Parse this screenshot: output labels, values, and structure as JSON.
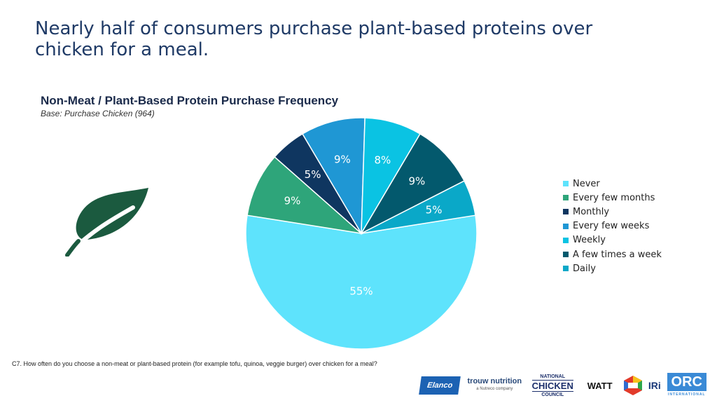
{
  "headline": "Nearly half of consumers purchase plant-based proteins over chicken for a meal.",
  "chart_data": {
    "type": "pie",
    "title": "Non-Meat / Plant-Based Protein Purchase Frequency",
    "subtitle": "Base: Purchase Chicken (964)",
    "slices": [
      {
        "label": "Never",
        "value": 55,
        "display": "55%",
        "color": "#5ee3fc"
      },
      {
        "label": "Every few months",
        "value": 9,
        "display": "9%",
        "color": "#2ea57a"
      },
      {
        "label": "Monthly",
        "value": 5,
        "display": "5%",
        "color": "#0f3660"
      },
      {
        "label": "Every few weeks",
        "value": 9,
        "display": "9%",
        "color": "#1f97d4"
      },
      {
        "label": "Weekly",
        "value": 8,
        "display": "8%",
        "color": "#0ac3e3"
      },
      {
        "label": "A few times a week",
        "value": 9,
        "display": "9%",
        "color": "#03596d"
      },
      {
        "label": "Daily",
        "value": 5,
        "display": "5%",
        "color": "#0aa8c8"
      }
    ],
    "legend_position": "right"
  },
  "icons": {
    "leaf": "leaf-icon"
  },
  "footnote": "C7. How often do you choose a non-meat or plant-based protein (for example tofu, quinoa, veggie burger) over chicken for a meal?",
  "logos": {
    "elanco": "Elanco",
    "trouw": "trouw nutrition",
    "trouw_sub": "a Nutreco company",
    "ncc_top": "NATIONAL",
    "ncc_main": "CHICKEN",
    "ncc_bottom": "COUNCIL",
    "watt": "WATT",
    "iri": "IRi",
    "orc": "ORC",
    "orc_sub": "INTERNATIONAL"
  }
}
